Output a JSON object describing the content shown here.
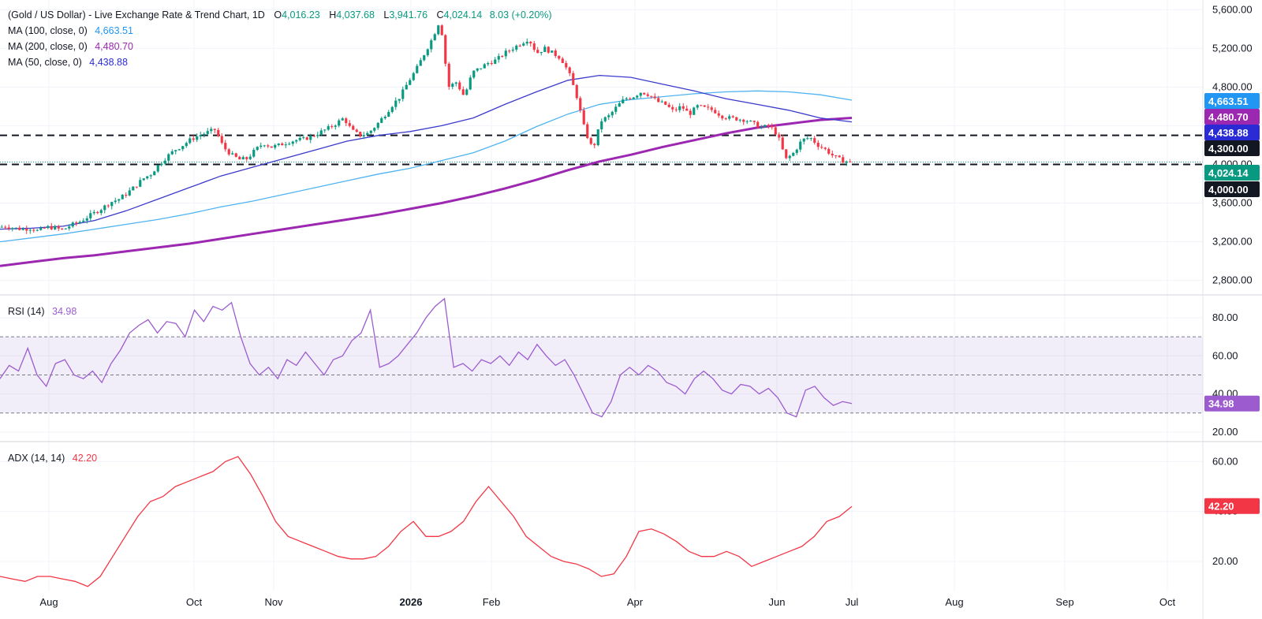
{
  "header": {
    "symbol": "(Gold / US Dollar) - Live Exchange Rate & Trend Chart, 1D",
    "open_label": "O",
    "open": "4,016.23",
    "high_label": "H",
    "high": "4,037.68",
    "low_label": "L",
    "low": "3,941.76",
    "close_label": "C",
    "close": "4,024.14",
    "change": "8.03 (+0.20%)"
  },
  "indicators": [
    {
      "label": "MA (100, close, 0)",
      "value": "4,663.51",
      "color": "#2196f3"
    },
    {
      "label": "MA (200, close, 0)",
      "value": "4,480.70",
      "color": "#9c27b0"
    },
    {
      "label": "MA (50, close, 0)",
      "value": "4,438.88",
      "color": "#2b2bd6"
    }
  ],
  "rsi": {
    "label": "RSI (14)",
    "value": "34.98",
    "color": "#9c5ccf"
  },
  "adx": {
    "label": "ADX (14, 14)",
    "value": "42.20",
    "color": "#f23645"
  },
  "colors": {
    "up": "#089981",
    "down": "#f23645",
    "ma100": "#4fb3f0",
    "ma200": "#9c27b0",
    "ma50": "#3a3acc",
    "rsi": "#9c5ccf",
    "adx": "#f23645",
    "grid": "#f0f3fa"
  },
  "chart_data": [
    {
      "type": "candlestick",
      "title": "(Gold / US Dollar) - Live Exchange Rate & Trend Chart, 1D",
      "x_tick_labels": [
        "Aug",
        "Oct",
        "Nov",
        "2026",
        "Feb",
        "Apr",
        "Jun",
        "Jul",
        "Aug",
        "Sep",
        "Oct"
      ],
      "ylim": [
        2650,
        5700
      ],
      "y_ticks": [
        2800,
        3200,
        3600,
        4000,
        4400,
        4800,
        5200,
        5600
      ],
      "y_tick_labels": [
        "2,800.00",
        "3,200.00",
        "3,600.00",
        "4,000.00",
        "4,400.00",
        "4,800.00",
        "5,200.00",
        "5,600.00"
      ],
      "last_close": 4024.14,
      "horizontal_levels": [
        4300,
        4000
      ],
      "price_path": [
        3350,
        3360,
        3340,
        3330,
        3340,
        3310,
        3350,
        3345,
        3320,
        3370,
        3400,
        3450,
        3500,
        3550,
        3610,
        3640,
        3700,
        3770,
        3850,
        3900,
        4000,
        4080,
        4150,
        4200,
        4260,
        4300,
        4330,
        4360,
        4180,
        4100,
        4050,
        4060,
        4150,
        4220,
        4180,
        4200,
        4230,
        4250,
        4260,
        4290,
        4330,
        4370,
        4420,
        4480,
        4350,
        4300,
        4320,
        4400,
        4500,
        4610,
        4700,
        4850,
        4980,
        5140,
        5300,
        5500,
        4800,
        4850,
        4700,
        4950,
        5000,
        5050,
        5080,
        5150,
        5200,
        5250,
        5300,
        5150,
        5200,
        5150,
        5100,
        4950,
        4700,
        4350,
        4150,
        4450,
        4500,
        4600,
        4680,
        4700,
        4750,
        4720,
        4650,
        4620,
        4550,
        4600,
        4520,
        4600,
        4580,
        4560,
        4500,
        4480,
        4470,
        4460,
        4420,
        4380,
        4400,
        4300,
        4050,
        4120,
        4250,
        4280,
        4200,
        4150,
        4080,
        4040,
        4024.14
      ],
      "ma50_path": [
        3330,
        3340,
        3360,
        3420,
        3520,
        3640,
        3760,
        3880,
        3970,
        4060,
        4150,
        4240,
        4300,
        4340,
        4400,
        4480,
        4620,
        4750,
        4870,
        4920,
        4900,
        4830,
        4760,
        4680,
        4620,
        4560,
        4480,
        4439
      ],
      "ma100_path": [
        3200,
        3240,
        3280,
        3330,
        3380,
        3430,
        3490,
        3560,
        3620,
        3690,
        3760,
        3830,
        3900,
        3960,
        4040,
        4120,
        4240,
        4390,
        4520,
        4620,
        4670,
        4700,
        4730,
        4750,
        4760,
        4750,
        4720,
        4664
      ],
      "ma200_path": [
        2950,
        2990,
        3030,
        3060,
        3100,
        3140,
        3180,
        3230,
        3280,
        3330,
        3380,
        3430,
        3480,
        3540,
        3600,
        3670,
        3750,
        3840,
        3940,
        4030,
        4100,
        4180,
        4250,
        4320,
        4380,
        4420,
        4460,
        4481
      ],
      "series": [
        {
          "name": "MA (100, close, 0)",
          "last": 4663.51
        },
        {
          "name": "MA (200, close, 0)",
          "last": 4480.7
        },
        {
          "name": "MA (50, close, 0)",
          "last": 4438.88
        }
      ],
      "price_tags": [
        "4,663.51",
        "4,480.70",
        "4,438.88",
        "4,300.00",
        "4,024.14",
        "4,000.00"
      ]
    },
    {
      "type": "line",
      "title": "RSI (14)",
      "ylim": [
        15,
        92
      ],
      "y_ticks": [
        20,
        40,
        60,
        80
      ],
      "y_tick_labels": [
        "20.00",
        "40.00",
        "60.00",
        "80.00"
      ],
      "band": [
        30,
        70
      ],
      "midline": 50,
      "values": [
        48,
        55,
        52,
        64,
        50,
        44,
        56,
        58,
        50,
        48,
        52,
        46,
        56,
        63,
        72,
        76,
        79,
        72,
        78,
        77,
        70,
        84,
        78,
        86,
        84,
        88,
        70,
        56,
        50,
        54,
        48,
        58,
        55,
        62,
        56,
        50,
        58,
        60,
        68,
        72,
        84,
        54,
        56,
        60,
        66,
        72,
        80,
        86,
        90,
        54,
        56,
        52,
        58,
        56,
        60,
        55,
        62,
        58,
        66,
        60,
        55,
        58,
        50,
        40,
        30,
        28,
        36,
        50,
        54,
        50,
        55,
        52,
        46,
        44,
        40,
        48,
        52,
        48,
        42,
        40,
        45,
        44,
        40,
        43,
        38,
        30,
        28,
        42,
        44,
        38,
        34,
        36,
        35
      ],
      "last": 34.98
    },
    {
      "type": "line",
      "title": "ADX (14, 14)",
      "ylim": [
        8,
        68
      ],
      "y_ticks": [
        20,
        40,
        60
      ],
      "y_tick_labels": [
        "20.00",
        "40.00",
        "60.00"
      ],
      "values": [
        14,
        13,
        12,
        14,
        14,
        13,
        12,
        10,
        14,
        22,
        30,
        38,
        44,
        46,
        50,
        52,
        54,
        56,
        60,
        62,
        55,
        46,
        36,
        30,
        28,
        26,
        24,
        22,
        21,
        21,
        22,
        26,
        32,
        36,
        30,
        30,
        32,
        36,
        44,
        50,
        44,
        38,
        30,
        26,
        22,
        20,
        19,
        17,
        14,
        15,
        22,
        32,
        33,
        31,
        28,
        24,
        22,
        22,
        24,
        22,
        18,
        20,
        22,
        24,
        26,
        30,
        36,
        38,
        42
      ],
      "last": 42.2
    }
  ]
}
